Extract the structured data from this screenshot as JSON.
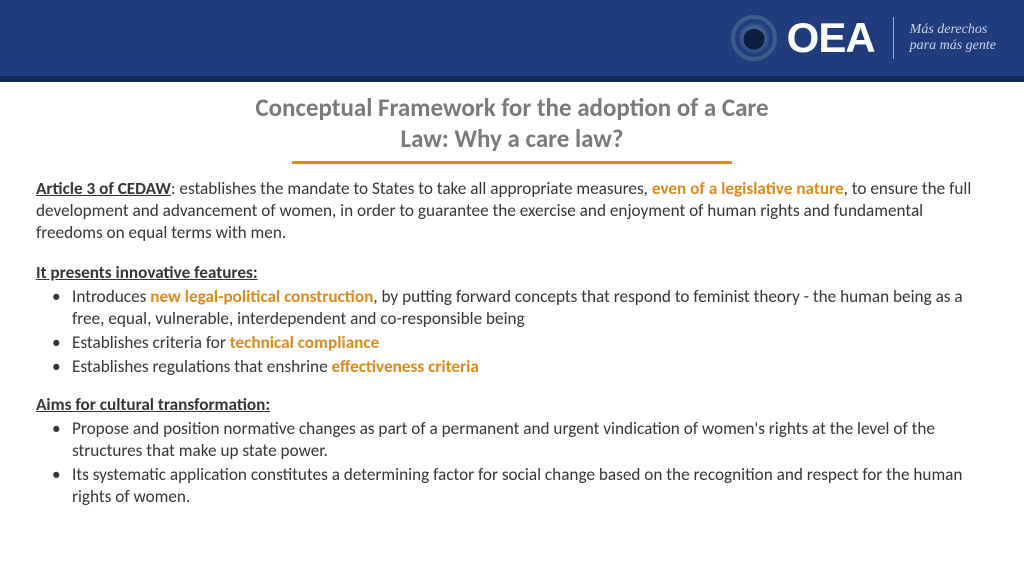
{
  "colors": {
    "header_bg": "#1f3d7a",
    "header_lower": "#132a57",
    "title_gray": "#7a7a7a",
    "accent_orange": "#e08a1c",
    "body_text": "#363636",
    "white": "#ffffff"
  },
  "header": {
    "org_acronym": "OEA",
    "slogan_line1": "Más derechos",
    "slogan_line2": "para más gente"
  },
  "title": {
    "line1": "Conceptual Framework for the adoption of a Care",
    "line2": "Law: Why a care law?"
  },
  "intro": {
    "lead_label": "Article 3 of CEDAW",
    "part1": ": establishes the mandate to States to take all appropriate measures, ",
    "accent": "even of a legislative nature",
    "part2": ", to ensure the full development and advancement of women, in order to guarantee the exercise and enjoyment of human rights and fundamental freedoms on equal terms with men."
  },
  "section_a": {
    "heading": "It presents innovative features:",
    "items": [
      {
        "pre": "Introduces ",
        "accent": "new legal-political construction",
        "post": ", by putting forward concepts that respond to feminist theory - the human being as a free, equal, vulnerable, interdependent and co-responsible being"
      },
      {
        "pre": "Establishes criteria for ",
        "accent": "technical compliance",
        "post": ""
      },
      {
        "pre": "Establishes regulations that enshrine ",
        "accent": "effectiveness criteria",
        "post": ""
      }
    ]
  },
  "section_b": {
    "heading": "Aims for cultural transformation:",
    "items": [
      "Propose and position normative changes as part of a permanent and urgent vindication of women's rights at the level of the structures that make up state power.",
      "Its systematic application constitutes a determining factor for social change based on the recognition and respect for the human rights of women."
    ]
  }
}
